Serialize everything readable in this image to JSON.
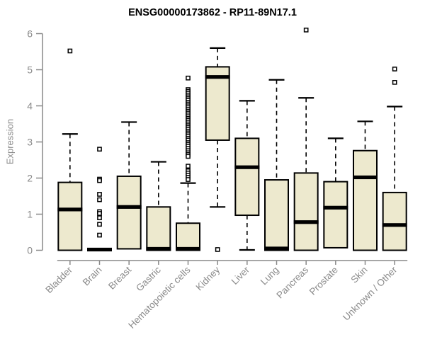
{
  "chart_data": {
    "type": "boxplot",
    "title": "ENSG00000173862 - RP11-89N17.1",
    "ylabel": "Expression",
    "xlabel": "",
    "ylim": [
      0,
      6
    ],
    "yticks": [
      0,
      1,
      2,
      3,
      4,
      5,
      6
    ],
    "grid": false,
    "legend": "none",
    "x_label_rotation": -45,
    "colors": {
      "box_fill": "#EDE9CE",
      "box_stroke": "#000000",
      "median": "#000000",
      "whisker": "#000000",
      "outlier_stroke": "#000000",
      "outlier_fill": "#ffffff",
      "axis": "#898989",
      "tick_label": "#8a8a8a",
      "title": "#000000",
      "background": "#ffffff"
    },
    "categories": [
      "Bladder",
      "Brain",
      "Breast",
      "Gastric",
      "Hematopoietic cells",
      "Kidney",
      "Liver",
      "Lung",
      "Pancreas",
      "Prostate",
      "Skin",
      "Unknown / Other"
    ],
    "series": [
      {
        "label": "Bladder",
        "whisker_low": 0,
        "q1": 0,
        "median": 1.13,
        "q3": 1.88,
        "whisker_high": 3.22,
        "outliers": [
          5.52
        ]
      },
      {
        "label": "Brain",
        "whisker_low": 0,
        "q1": 0,
        "median": 0.02,
        "q3": 0.04,
        "whisker_high": 0.04,
        "outliers": [
          2.8,
          1.97,
          1.93,
          1.55,
          1.4,
          1.07,
          1.02,
          0.9,
          0.72,
          0.42
        ]
      },
      {
        "label": "Breast",
        "whisker_low": 0.04,
        "q1": 0.04,
        "median": 1.2,
        "q3": 2.05,
        "whisker_high": 3.55,
        "outliers": []
      },
      {
        "label": "Gastric",
        "whisker_low": 0,
        "q1": 0,
        "median": 0.04,
        "q3": 1.2,
        "whisker_high": 2.45,
        "outliers": []
      },
      {
        "label": "Hematopoietic cells",
        "whisker_low": 0,
        "q1": 0,
        "median": 0.04,
        "q3": 0.75,
        "whisker_high": 1.86,
        "outliers": [
          4.77,
          4.45,
          4.4,
          4.35,
          4.3,
          4.25,
          4.2,
          4.15,
          4.1,
          4.05,
          4.0,
          3.95,
          3.9,
          3.85,
          3.8,
          3.75,
          3.7,
          3.65,
          3.6,
          3.55,
          3.5,
          3.45,
          3.4,
          3.35,
          3.3,
          3.25,
          3.2,
          3.15,
          3.1,
          3.05,
          2.98,
          2.93,
          2.88,
          2.82,
          2.76,
          2.7,
          2.65,
          2.6,
          2.33,
          2.2,
          2.14,
          2.08,
          2.02,
          1.96
        ]
      },
      {
        "label": "Kidney",
        "whisker_low": 1.2,
        "q1": 3.05,
        "median": 4.8,
        "q3": 5.08,
        "whisker_high": 5.6,
        "outliers": [
          0.02
        ]
      },
      {
        "label": "Liver",
        "whisker_low": 0.01,
        "q1": 0.97,
        "median": 2.3,
        "q3": 3.1,
        "whisker_high": 4.14,
        "outliers": []
      },
      {
        "label": "Lung",
        "whisker_low": 0,
        "q1": 0,
        "median": 0.05,
        "q3": 1.95,
        "whisker_high": 4.72,
        "outliers": []
      },
      {
        "label": "Pancreas",
        "whisker_low": 0,
        "q1": 0,
        "median": 0.78,
        "q3": 2.14,
        "whisker_high": 4.22,
        "outliers": [
          6.1
        ]
      },
      {
        "label": "Prostate",
        "whisker_low": 0.07,
        "q1": 0.07,
        "median": 1.18,
        "q3": 1.9,
        "whisker_high": 3.1,
        "outliers": []
      },
      {
        "label": "Skin",
        "whisker_low": 0,
        "q1": 0,
        "median": 2.02,
        "q3": 2.76,
        "whisker_high": 3.57,
        "outliers": []
      },
      {
        "label": "Unknown / Other",
        "whisker_low": 0,
        "q1": 0,
        "median": 0.7,
        "q3": 1.6,
        "whisker_high": 3.98,
        "outliers": [
          5.02,
          4.65
        ]
      }
    ]
  }
}
